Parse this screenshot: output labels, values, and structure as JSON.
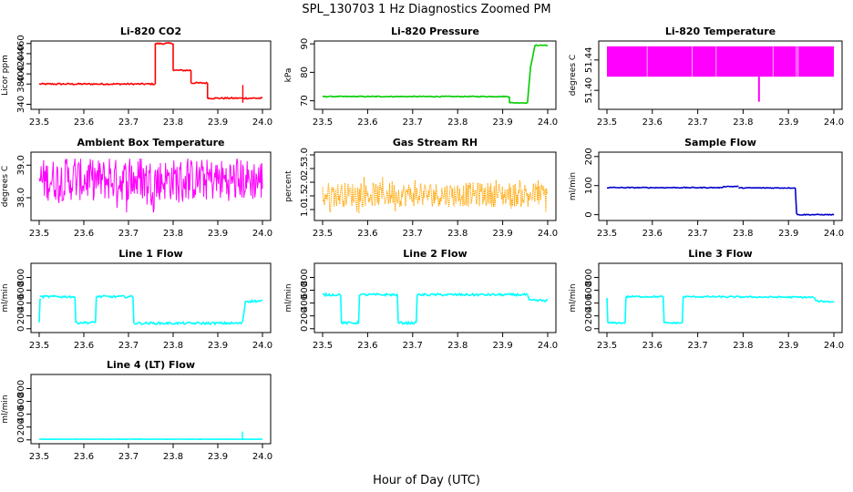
{
  "title": "SPL_130703  1 Hz Diagnostics Zoomed PM",
  "xlabel": "Hour of Day (UTC)",
  "chart_data": [
    {
      "type": "line",
      "title": "Li-820 CO2",
      "ylabel": "Licor ppm",
      "color": "#ff0000",
      "xlim": [
        23.5,
        24.0
      ],
      "xticks": [
        "23.5",
        "23.6",
        "23.7",
        "23.8",
        "23.9",
        "24.0"
      ],
      "ylim": [
        330,
        465
      ],
      "yticks": [
        340,
        380,
        400,
        420,
        440,
        460
      ],
      "ytick_labels": [
        "340",
        "380",
        "400",
        "420",
        "440",
        "460"
      ],
      "noise": 1.5,
      "series": [
        {
          "x": [
            23.5,
            23.76
          ],
          "y": [
            380,
            380
          ]
        },
        {
          "x": [
            23.76,
            23.76
          ],
          "y": [
            380,
            460
          ]
        },
        {
          "x": [
            23.76,
            23.8
          ],
          "y": [
            460,
            460
          ]
        },
        {
          "x": [
            23.8,
            23.8
          ],
          "y": [
            460,
            407
          ]
        },
        {
          "x": [
            23.8,
            23.84
          ],
          "y": [
            407,
            407
          ]
        },
        {
          "x": [
            23.84,
            23.84
          ],
          "y": [
            407,
            382
          ]
        },
        {
          "x": [
            23.84,
            23.877
          ],
          "y": [
            382,
            382
          ]
        },
        {
          "x": [
            23.877,
            23.877
          ],
          "y": [
            382,
            352
          ]
        },
        {
          "x": [
            23.877,
            24.0
          ],
          "y": [
            352,
            352
          ]
        }
      ],
      "spikes": [
        {
          "x": 23.956,
          "y0": 343,
          "y1": 378
        }
      ]
    },
    {
      "type": "line",
      "title": "Li-820 Pressure",
      "ylabel": "kPa",
      "color": "#00cc00",
      "xlim": [
        23.5,
        24.0
      ],
      "xticks": [
        "23.5",
        "23.6",
        "23.7",
        "23.8",
        "23.9",
        "24.0"
      ],
      "ylim": [
        67,
        91
      ],
      "yticks": [
        70,
        80,
        90
      ],
      "ytick_labels": [
        "70",
        "80",
        "90"
      ],
      "noise": 0.15,
      "series": [
        {
          "x": [
            23.5,
            23.915
          ],
          "y": [
            71.5,
            71.5
          ]
        },
        {
          "x": [
            23.915,
            23.915
          ],
          "y": [
            71.5,
            69.3
          ]
        },
        {
          "x": [
            23.915,
            23.955
          ],
          "y": [
            69.3,
            69.3
          ]
        },
        {
          "x": [
            23.955,
            23.962
          ],
          "y": [
            69.3,
            82
          ]
        },
        {
          "x": [
            23.962,
            23.972
          ],
          "y": [
            82,
            89.5
          ]
        },
        {
          "x": [
            23.972,
            24.0
          ],
          "y": [
            89.5,
            89.5
          ]
        }
      ]
    },
    {
      "type": "band",
      "title": "Li-820 Temperature",
      "ylabel": "degrees C",
      "color": "#ff00ff",
      "xlim": [
        23.5,
        24.0
      ],
      "xticks": [
        "23.5",
        "23.6",
        "23.7",
        "23.8",
        "23.9",
        "24.0"
      ],
      "ylim": [
        51.375,
        51.465
      ],
      "yticks": [
        51.4,
        51.44
      ],
      "ytick_labels": [
        "51.40",
        "51.44"
      ],
      "band": [
        51.418,
        51.458
      ],
      "outlier": {
        "x": 23.835,
        "y0": 51.385,
        "y1": 51.418
      }
    },
    {
      "type": "noise",
      "title": "Ambient Box Temperature",
      "ylabel": "degrees C",
      "color": "#ff00ff",
      "xlim": [
        23.5,
        24.0
      ],
      "xticks": [
        "23.5",
        "23.6",
        "23.7",
        "23.8",
        "23.9",
        "24.0"
      ],
      "ylim": [
        37.3,
        39.4
      ],
      "yticks": [
        38.0,
        39.0
      ],
      "ytick_labels": [
        "38.0",
        "39.0"
      ],
      "center": 38.55,
      "spread": 0.65,
      "extremes": [
        37.55,
        39.2
      ]
    },
    {
      "type": "noise",
      "title": "Gas Stream RH",
      "ylabel": "percent",
      "color": "#ffa500",
      "dotted": true,
      "xlim": [
        23.5,
        24.0
      ],
      "xticks": [
        "23.5",
        "23.6",
        "23.7",
        "23.8",
        "23.9",
        "24.0"
      ],
      "ylim": [
        0.6,
        3.1
      ],
      "yticks": [
        1.0,
        1.5,
        2.0,
        2.5,
        3.0
      ],
      "ytick_labels": [
        "1.0",
        "1.5",
        "2.0",
        "2.5",
        "3.0"
      ],
      "center": 1.55,
      "spread": 0.45,
      "extremes": [
        0.8,
        2.9
      ]
    },
    {
      "type": "line",
      "title": "Sample Flow",
      "ylabel": "ml/min",
      "color": "#0000cc",
      "xlim": [
        23.5,
        24.0
      ],
      "xticks": [
        "23.5",
        "23.6",
        "23.7",
        "23.8",
        "23.9",
        "24.0"
      ],
      "ylim": [
        -20,
        215
      ],
      "yticks": [
        0,
        100,
        200
      ],
      "ytick_labels": [
        "0",
        "100",
        "200"
      ],
      "noise": 1.5,
      "series": [
        {
          "x": [
            23.5,
            23.75
          ],
          "y": [
            93,
            93
          ]
        },
        {
          "x": [
            23.75,
            23.76
          ],
          "y": [
            93,
            97
          ]
        },
        {
          "x": [
            23.76,
            23.79
          ],
          "y": [
            97,
            97
          ]
        },
        {
          "x": [
            23.79,
            23.915
          ],
          "y": [
            92,
            92
          ]
        },
        {
          "x": [
            23.915,
            23.918
          ],
          "y": [
            92,
            2
          ]
        },
        {
          "x": [
            23.918,
            24.0
          ],
          "y": [
            0,
            0
          ]
        }
      ]
    },
    {
      "type": "line",
      "title": "Line 1 Flow",
      "ylabel": "ml/min",
      "color": "#00ffff",
      "xlim": [
        23.5,
        24.0
      ],
      "xticks": [
        "23.5",
        "23.6",
        "23.7",
        "23.8",
        "23.9",
        "24.0"
      ],
      "ylim": [
        -60,
        1020
      ],
      "yticks": [
        0,
        200,
        400,
        600,
        800
      ],
      "ytick_labels": [
        "0",
        "200",
        "400",
        "600",
        "800"
      ],
      "noise": 18,
      "series": [
        {
          "x": [
            23.5,
            23.502
          ],
          "y": [
            100,
            470
          ]
        },
        {
          "x": [
            23.502,
            23.58
          ],
          "y": [
            500,
            500
          ]
        },
        {
          "x": [
            23.58,
            23.582
          ],
          "y": [
            500,
            95
          ]
        },
        {
          "x": [
            23.582,
            23.626
          ],
          "y": [
            95,
            95
          ]
        },
        {
          "x": [
            23.626,
            23.628
          ],
          "y": [
            95,
            500
          ]
        },
        {
          "x": [
            23.628,
            23.71
          ],
          "y": [
            500,
            500
          ]
        },
        {
          "x": [
            23.71,
            23.712
          ],
          "y": [
            500,
            85
          ]
        },
        {
          "x": [
            23.712,
            23.955
          ],
          "y": [
            85,
            85
          ]
        },
        {
          "x": [
            23.955,
            23.962
          ],
          "y": [
            85,
            430
          ]
        },
        {
          "x": [
            23.962,
            24.0
          ],
          "y": [
            430,
            430
          ]
        }
      ]
    },
    {
      "type": "line",
      "title": "Line 2 Flow",
      "ylabel": "ml/min",
      "color": "#00ffff",
      "xlim": [
        23.5,
        24.0
      ],
      "xticks": [
        "23.5",
        "23.6",
        "23.7",
        "23.8",
        "23.9",
        "24.0"
      ],
      "ylim": [
        -60,
        1020
      ],
      "yticks": [
        0,
        200,
        400,
        600,
        800
      ],
      "ytick_labels": [
        "0",
        "200",
        "400",
        "600",
        "800"
      ],
      "noise": 18,
      "series": [
        {
          "x": [
            23.5,
            23.54
          ],
          "y": [
            530,
            530
          ]
        },
        {
          "x": [
            23.54,
            23.542
          ],
          "y": [
            530,
            90
          ]
        },
        {
          "x": [
            23.542,
            23.58
          ],
          "y": [
            90,
            90
          ]
        },
        {
          "x": [
            23.58,
            23.582
          ],
          "y": [
            90,
            530
          ]
        },
        {
          "x": [
            23.582,
            23.666
          ],
          "y": [
            530,
            530
          ]
        },
        {
          "x": [
            23.666,
            23.668
          ],
          "y": [
            530,
            90
          ]
        },
        {
          "x": [
            23.668,
            23.708
          ],
          "y": [
            90,
            90
          ]
        },
        {
          "x": [
            23.708,
            23.71
          ],
          "y": [
            90,
            530
          ]
        },
        {
          "x": [
            23.71,
            23.955
          ],
          "y": [
            530,
            530
          ]
        },
        {
          "x": [
            23.955,
            23.96
          ],
          "y": [
            530,
            440
          ]
        },
        {
          "x": [
            23.96,
            24.0
          ],
          "y": [
            440,
            440
          ]
        }
      ]
    },
    {
      "type": "line",
      "title": "Line 3 Flow",
      "ylabel": "ml/min",
      "color": "#00ffff",
      "xlim": [
        23.5,
        24.0
      ],
      "xticks": [
        "23.5",
        "23.6",
        "23.7",
        "23.8",
        "23.9",
        "24.0"
      ],
      "ylim": [
        -60,
        1020
      ],
      "yticks": [
        0,
        200,
        400,
        600,
        800
      ],
      "ytick_labels": [
        "0",
        "200",
        "400",
        "600",
        "800"
      ],
      "noise": 12,
      "series": [
        {
          "x": [
            23.5,
            23.502
          ],
          "y": [
            480,
            90
          ]
        },
        {
          "x": [
            23.502,
            23.54
          ],
          "y": [
            90,
            90
          ]
        },
        {
          "x": [
            23.54,
            23.542
          ],
          "y": [
            90,
            500
          ]
        },
        {
          "x": [
            23.542,
            23.624
          ],
          "y": [
            500,
            500
          ]
        },
        {
          "x": [
            23.624,
            23.626
          ],
          "y": [
            500,
            90
          ]
        },
        {
          "x": [
            23.626,
            23.666
          ],
          "y": [
            90,
            90
          ]
        },
        {
          "x": [
            23.666,
            23.668
          ],
          "y": [
            90,
            500
          ]
        },
        {
          "x": [
            23.668,
            23.955
          ],
          "y": [
            500,
            490
          ]
        },
        {
          "x": [
            23.955,
            23.962
          ],
          "y": [
            490,
            430
          ]
        },
        {
          "x": [
            23.962,
            24.0
          ],
          "y": [
            430,
            420
          ]
        }
      ]
    },
    {
      "type": "line",
      "title": "Line 4 (LT) Flow",
      "ylabel": "ml/min",
      "color": "#00ffff",
      "xlim": [
        23.5,
        24.0
      ],
      "xticks": [
        "23.5",
        "23.6",
        "23.7",
        "23.8",
        "23.9",
        "24.0"
      ],
      "ylim": [
        -60,
        1020
      ],
      "yticks": [
        0,
        200,
        400,
        600,
        800
      ],
      "ytick_labels": [
        "0",
        "200",
        "400",
        "600",
        "800"
      ],
      "noise": 2,
      "series": [
        {
          "x": [
            23.5,
            24.0
          ],
          "y": [
            10,
            10
          ]
        }
      ],
      "spikes": [
        {
          "x": 23.955,
          "y0": 10,
          "y1": 130
        }
      ]
    }
  ]
}
